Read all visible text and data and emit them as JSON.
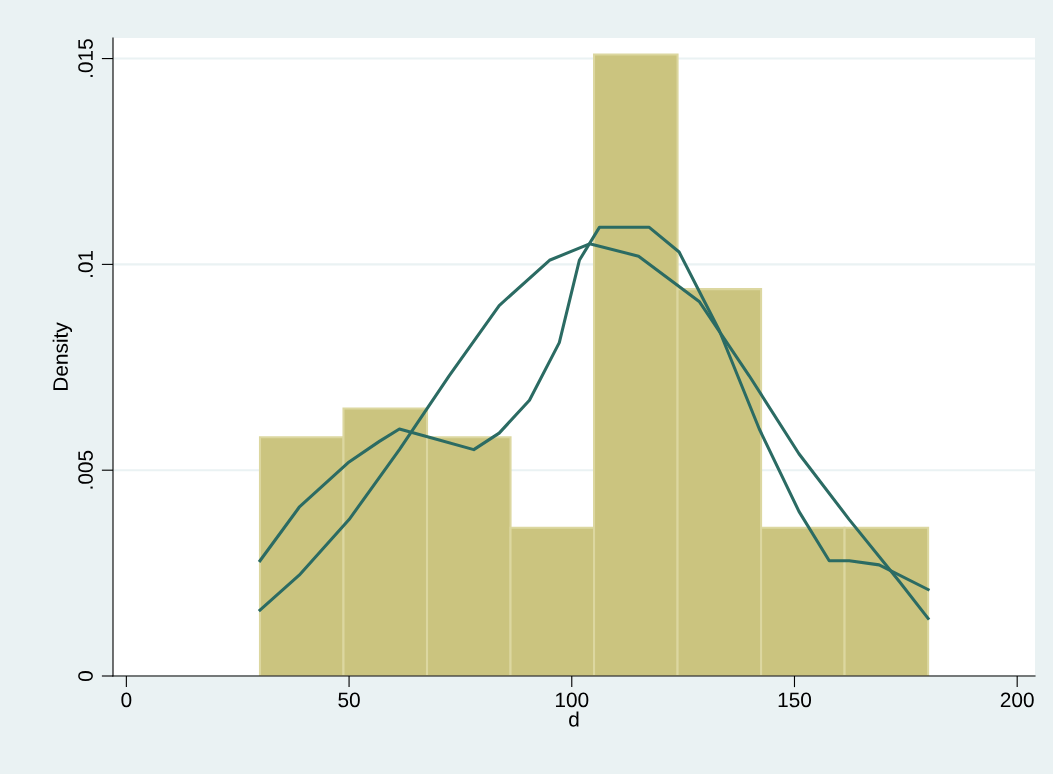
{
  "chart_data": {
    "type": "histogram",
    "xlabel": "d",
    "ylabel": "Density",
    "bins": [
      30,
      48.75,
      67.5,
      86.25,
      105,
      123.75,
      142.5,
      161.25,
      180
    ],
    "values": [
      0.0058,
      0.0065,
      0.0058,
      0.0036,
      0.0151,
      0.0094,
      0.0036,
      0.0036
    ],
    "color": "#cbc47f",
    "series": [
      {
        "type": "line",
        "color": "#2b6b63",
        "x": [
          30,
          38.8,
          50,
          61.3,
          72.5,
          83.7,
          95,
          104,
          115,
          128.6,
          139.8,
          151,
          162.3,
          173.5,
          180
        ],
        "values": [
          0.0016,
          0.00245,
          0.0038,
          0.0055,
          0.0073,
          0.009,
          0.0101,
          0.0105,
          0.0102,
          0.0091,
          0.0073,
          0.0054,
          0.0038,
          0.0023,
          0.0014
        ]
      },
      {
        "type": "line",
        "color": "#2b6b63",
        "x": [
          30,
          38.8,
          50,
          56.8,
          61.3,
          68,
          78,
          83.7,
          90.5,
          97.2,
          101.7,
          106.2,
          113,
          117.4,
          124.1,
          133.1,
          142.1,
          151,
          157.8,
          162.3,
          169,
          180
        ],
        "values": [
          0.0028,
          0.0041,
          0.0052,
          0.0057,
          0.006,
          0.0058,
          0.0055,
          0.0059,
          0.0067,
          0.0081,
          0.0101,
          0.0109,
          0.0109,
          0.0109,
          0.0103,
          0.0084,
          0.006,
          0.004,
          0.0028,
          0.0028,
          0.0027,
          0.0021
        ]
      }
    ],
    "xlim": [
      -3,
      204
    ],
    "ylim": [
      0,
      0.0155
    ],
    "xticks": [
      0,
      50,
      100,
      150,
      200
    ],
    "yticks": [
      0,
      {
        "value": 0.005,
        "label": ".005"
      },
      {
        "value": 0.01,
        "label": ".01"
      },
      {
        "value": 0.015,
        "label": ".015"
      }
    ],
    "grid": "y"
  }
}
